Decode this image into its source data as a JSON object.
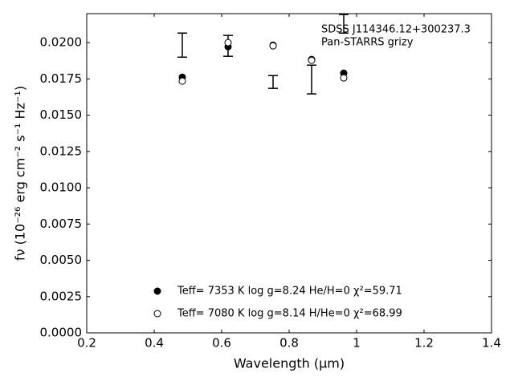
{
  "chart_data": {
    "type": "errorbar-scatter",
    "xlabel": "Wavelength (μm)",
    "ylabel": "fν (10⁻²⁶ erg cm⁻² s⁻¹ Hz⁻¹)",
    "annotations": [
      "SDSS J114346.12+300237.3",
      "Pan-STARRS grizy"
    ],
    "xlim": [
      0.2,
      1.4
    ],
    "xticks": [
      0.2,
      0.4,
      0.6,
      0.8,
      1.0,
      1.2,
      1.4
    ],
    "ylim": [
      0,
      0.022
    ],
    "yticks": [
      {
        "value": 0,
        "label": "0.0000"
      },
      {
        "value": 0.0025,
        "label": "0.0025"
      },
      {
        "value": 0.005,
        "label": "0.0050"
      },
      {
        "value": 0.0075,
        "label": "0.0075"
      },
      {
        "value": 0.01,
        "label": "0.0100"
      },
      {
        "value": 0.0125,
        "label": "0.0125"
      },
      {
        "value": 0.015,
        "label": "0.0150"
      },
      {
        "value": 0.0175,
        "label": "0.0175"
      },
      {
        "value": 0.02,
        "label": "0.0200"
      }
    ],
    "observed": {
      "color": "#000000",
      "x": [
        0.4833,
        0.619,
        0.7524,
        0.8667,
        0.9619
      ],
      "values": [
        0.01983,
        0.01978,
        0.01729,
        0.01746,
        0.0213
      ],
      "errors": [
        0.00083,
        0.00072,
        0.00044,
        0.00099,
        0.00064
      ]
    },
    "series": [
      {
        "name": "Teff=  7353 K  log g=8.24  He/H=0  χ²=59.71",
        "marker": "filled",
        "color": "#000000",
        "x": [
          0.4833,
          0.619,
          0.7524,
          0.8667,
          0.9619
        ],
        "values": [
          0.01762,
          0.01972,
          0.01983,
          0.01884,
          0.0179
        ]
      },
      {
        "name": "Teff=  7080 K  log g=8.14  H/He=0  χ²=68.99",
        "marker": "open",
        "color": "#000000",
        "x": [
          0.4833,
          0.619,
          0.7524,
          0.8667,
          0.9619
        ],
        "values": [
          0.01735,
          0.02,
          0.01978,
          0.01878,
          0.01757
        ]
      }
    ]
  }
}
